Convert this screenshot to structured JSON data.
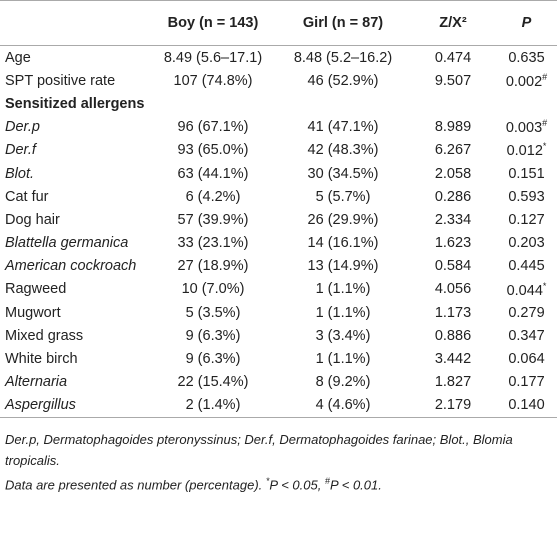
{
  "table": {
    "header": [
      "Boy (n = 143)",
      "Girl (n = 87)",
      "Z/X²",
      "P"
    ],
    "rows": [
      {
        "label": "Age",
        "cells": [
          "8.49 (5.6–17.1)",
          "8.48 (5.2–16.2)",
          "0.474",
          "0.635"
        ]
      },
      {
        "label": "SPT positive rate",
        "cells": [
          "107 (74.8%)",
          "46 (52.9%)",
          "9.507",
          "0.002"
        ],
        "sup": "#"
      },
      {
        "label": "Sensitized allergens",
        "section": true
      },
      {
        "label": "Der.p",
        "italic": true,
        "cells": [
          "96 (67.1%)",
          "41 (47.1%)",
          "8.989",
          "0.003"
        ],
        "sup": "#"
      },
      {
        "label": "Der.f",
        "italic": true,
        "cells": [
          "93 (65.0%)",
          "42 (48.3%)",
          "6.267",
          "0.012"
        ],
        "sup": "*"
      },
      {
        "label": "Blot.",
        "italic": true,
        "cells": [
          "63 (44.1%)",
          "30 (34.5%)",
          "2.058",
          "0.151"
        ]
      },
      {
        "label": "Cat fur",
        "cells": [
          "6 (4.2%)",
          "5 (5.7%)",
          "0.286",
          "0.593"
        ]
      },
      {
        "label": "Dog hair",
        "cells": [
          "57 (39.9%)",
          "26 (29.9%)",
          "2.334",
          "0.127"
        ]
      },
      {
        "label": "Blattella germanica",
        "italic": true,
        "cells": [
          "33 (23.1%)",
          "14 (16.1%)",
          "1.623",
          "0.203"
        ]
      },
      {
        "label": "American cockroach",
        "italic": true,
        "cells": [
          "27 (18.9%)",
          "13 (14.9%)",
          "0.584",
          "0.445"
        ]
      },
      {
        "label": "Ragweed",
        "cells": [
          "10 (7.0%)",
          "1 (1.1%)",
          "4.056",
          "0.044"
        ],
        "sup": "*"
      },
      {
        "label": "Mugwort",
        "cells": [
          "5 (3.5%)",
          "1 (1.1%)",
          "1.173",
          "0.279"
        ]
      },
      {
        "label": "Mixed grass",
        "cells": [
          "9 (6.3%)",
          "3 (3.4%)",
          "0.886",
          "0.347"
        ]
      },
      {
        "label": "White birch",
        "cells": [
          "9 (6.3%)",
          "1 (1.1%)",
          "3.442",
          "0.064"
        ]
      },
      {
        "label": "Alternaria",
        "italic": true,
        "cells": [
          "22 (15.4%)",
          "8 (9.2%)",
          "1.827",
          "0.177"
        ]
      },
      {
        "label": "Aspergillus",
        "italic": true,
        "cells": [
          "2 (1.4%)",
          "4 (4.6%)",
          "2.179",
          "0.140"
        ]
      }
    ]
  },
  "notes": {
    "abbreviations": "Der.p, Dermatophagoides pteronyssinus; Der.f, Dermatophagoides farinae; Blot., Blomia tropicalis.",
    "data_note": [
      "Data are presented as number (percentage). ",
      "*",
      "P < 0.05, ",
      "#",
      "P < 0.01."
    ]
  }
}
